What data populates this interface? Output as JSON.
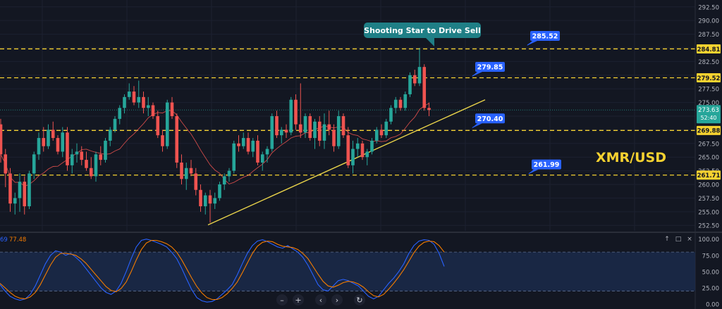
{
  "chart_data": [
    {
      "type": "candlestick",
      "symbol": "XMR/USD",
      "price_axis_ticks": [
        292.5,
        290.0,
        287.5,
        285.0,
        282.5,
        280.0,
        277.5,
        275.0,
        272.5,
        270.0,
        267.5,
        265.0,
        262.5,
        260.0,
        257.5,
        255.0,
        252.5
      ],
      "ylim": [
        251.5,
        293.5
      ],
      "level_lines": [
        284.81,
        279.52,
        269.88,
        261.71
      ],
      "level_tags": [
        {
          "label": "284.81",
          "value": 284.81
        },
        {
          "label": "279.52",
          "value": 279.52
        },
        {
          "label": "269.88",
          "value": 269.88
        },
        {
          "label": "261.71",
          "value": 261.71
        }
      ],
      "current_price": {
        "label": "273.63",
        "timer": "52:40",
        "value": 273.63
      },
      "callouts": [
        {
          "label": "285.52",
          "value": 285.52
        },
        {
          "label": "279.85",
          "value": 279.85
        },
        {
          "label": "270.40",
          "value": 270.4
        },
        {
          "label": "261.99",
          "value": 261.99
        }
      ],
      "annotation": "Shooting Star to Drive Sell",
      "trendline": {
        "start_index": 44,
        "start_value": 252.6,
        "end_index": 100,
        "end_value": 275.5
      },
      "candles": [
        [
          271.0,
          272.0,
          264.0,
          265.5
        ],
        [
          265.5,
          266.5,
          259.5,
          262.0
        ],
        [
          262.0,
          263.0,
          255.0,
          256.5
        ],
        [
          256.5,
          258.5,
          254.5,
          257.5
        ],
        [
          257.5,
          262.0,
          255.0,
          260.5
        ],
        [
          260.5,
          261.5,
          254.5,
          256.0
        ],
        [
          256.0,
          262.5,
          255.5,
          262.0
        ],
        [
          262.0,
          266.0,
          261.0,
          265.5
        ],
        [
          265.5,
          269.5,
          264.5,
          268.5
        ],
        [
          268.5,
          270.5,
          266.0,
          267.0
        ],
        [
          267.0,
          271.0,
          266.5,
          270.0
        ],
        [
          270.0,
          271.5,
          268.0,
          268.5
        ],
        [
          268.5,
          269.0,
          265.5,
          266.0
        ],
        [
          266.0,
          270.5,
          265.0,
          269.5
        ],
        [
          269.5,
          270.5,
          262.5,
          263.5
        ],
        [
          263.5,
          266.5,
          262.0,
          265.5
        ],
        [
          265.5,
          267.5,
          264.0,
          266.0
        ],
        [
          266.0,
          267.0,
          263.5,
          264.5
        ],
        [
          264.5,
          266.0,
          262.5,
          263.0
        ],
        [
          263.0,
          265.0,
          261.0,
          261.5
        ],
        [
          261.5,
          266.0,
          260.5,
          265.5
        ],
        [
          265.5,
          267.0,
          263.5,
          264.5
        ],
        [
          264.5,
          268.5,
          264.0,
          268.0
        ],
        [
          268.0,
          270.5,
          267.0,
          270.0
        ],
        [
          270.0,
          272.5,
          269.5,
          272.0
        ],
        [
          272.0,
          274.5,
          271.0,
          274.0
        ],
        [
          274.0,
          276.5,
          273.0,
          276.0
        ],
        [
          276.0,
          278.5,
          275.5,
          277.0
        ],
        [
          277.0,
          278.0,
          274.5,
          275.0
        ],
        [
          275.0,
          279.0,
          274.0,
          276.0
        ],
        [
          276.0,
          277.0,
          273.0,
          274.0
        ],
        [
          274.0,
          276.0,
          272.5,
          274.5
        ],
        [
          274.5,
          275.0,
          272.0,
          272.5
        ],
        [
          272.5,
          273.5,
          268.5,
          269.0
        ],
        [
          269.0,
          270.0,
          266.0,
          267.0
        ],
        [
          267.0,
          275.5,
          266.5,
          275.0
        ],
        [
          275.0,
          276.0,
          272.0,
          272.5
        ],
        [
          272.5,
          273.0,
          263.0,
          264.0
        ],
        [
          264.0,
          265.5,
          260.0,
          261.0
        ],
        [
          261.0,
          264.0,
          259.0,
          263.0
        ],
        [
          263.0,
          264.5,
          261.5,
          262.0
        ],
        [
          262.0,
          263.0,
          258.0,
          259.0
        ],
        [
          259.0,
          260.0,
          255.0,
          256.0
        ],
        [
          256.0,
          258.5,
          254.5,
          258.0
        ],
        [
          258.0,
          259.0,
          253.0,
          256.5
        ],
        [
          256.5,
          258.5,
          255.5,
          257.5
        ],
        [
          257.5,
          260.5,
          257.0,
          260.0
        ],
        [
          260.0,
          262.0,
          259.0,
          261.5
        ],
        [
          261.5,
          263.0,
          260.5,
          262.5
        ],
        [
          262.5,
          268.0,
          262.0,
          267.5
        ],
        [
          267.5,
          269.0,
          266.0,
          267.0
        ],
        [
          267.0,
          269.5,
          266.5,
          268.5
        ],
        [
          268.5,
          269.5,
          265.5,
          266.0
        ],
        [
          266.0,
          268.5,
          265.0,
          268.0
        ],
        [
          268.0,
          269.0,
          263.5,
          264.0
        ],
        [
          264.0,
          266.0,
          262.5,
          265.5
        ],
        [
          265.5,
          267.0,
          264.0,
          266.5
        ],
        [
          266.5,
          273.0,
          266.0,
          272.5
        ],
        [
          272.5,
          273.5,
          268.5,
          269.0
        ],
        [
          269.0,
          270.5,
          267.5,
          270.0
        ],
        [
          270.0,
          271.0,
          268.5,
          269.5
        ],
        [
          269.5,
          276.0,
          269.0,
          275.5
        ],
        [
          275.5,
          276.5,
          270.0,
          271.0
        ],
        [
          271.0,
          278.5,
          268.5,
          269.5
        ],
        [
          269.5,
          273.0,
          268.5,
          272.5
        ],
        [
          272.5,
          273.0,
          268.0,
          268.5
        ],
        [
          268.5,
          272.0,
          266.5,
          271.5
        ],
        [
          271.5,
          272.5,
          267.0,
          268.0
        ],
        [
          268.0,
          273.0,
          266.5,
          271.0
        ],
        [
          271.0,
          273.5,
          269.0,
          270.0
        ],
        [
          270.0,
          271.0,
          266.0,
          267.0
        ],
        [
          267.0,
          273.5,
          266.5,
          272.5
        ],
        [
          272.5,
          273.0,
          268.5,
          269.0
        ],
        [
          269.0,
          270.5,
          263.0,
          263.5
        ],
        [
          263.5,
          268.0,
          262.0,
          266.5
        ],
        [
          266.5,
          268.5,
          265.0,
          267.5
        ],
        [
          267.5,
          268.0,
          264.5,
          265.0
        ],
        [
          265.0,
          266.5,
          263.5,
          266.0
        ],
        [
          266.0,
          268.5,
          265.5,
          268.0
        ],
        [
          268.0,
          270.5,
          267.5,
          270.0
        ],
        [
          270.0,
          271.0,
          268.5,
          269.0
        ],
        [
          269.0,
          272.0,
          268.5,
          271.5
        ],
        [
          271.5,
          274.5,
          271.0,
          274.0
        ],
        [
          274.0,
          276.0,
          273.0,
          275.5
        ],
        [
          275.5,
          276.0,
          273.5,
          274.0
        ],
        [
          274.0,
          277.0,
          273.5,
          276.5
        ],
        [
          276.5,
          280.5,
          276.0,
          280.0
        ],
        [
          280.0,
          281.0,
          278.0,
          278.5
        ],
        [
          278.5,
          285.0,
          278.0,
          281.5
        ],
        [
          281.5,
          282.0,
          273.5,
          274.0
        ],
        [
          274.0,
          275.0,
          272.5,
          273.63
        ]
      ]
    },
    {
      "type": "line",
      "indicator_label": "77.48",
      "indicator_label_prefix": "69",
      "y_ticks": [
        100.0,
        75.0,
        50.0,
        25.0,
        0.0
      ],
      "ylim": [
        0,
        104
      ],
      "band": [
        20,
        80
      ],
      "series": [
        {
          "color": "#2962ff",
          "values": [
            30,
            20,
            12,
            8,
            6,
            8,
            15,
            28,
            45,
            62,
            75,
            82,
            80,
            75,
            78,
            72,
            65,
            55,
            45,
            35,
            25,
            18,
            15,
            20,
            32,
            50,
            70,
            88,
            98,
            100,
            98,
            95,
            92,
            88,
            80,
            70,
            55,
            38,
            22,
            10,
            5,
            3,
            4,
            8,
            15,
            22,
            30,
            45,
            62,
            78,
            90,
            97,
            99,
            96,
            92,
            88,
            86,
            90,
            85,
            80,
            72,
            60,
            45,
            30,
            22,
            20,
            28,
            36,
            38,
            36,
            32,
            28,
            20,
            12,
            8,
            12,
            22,
            32,
            40,
            50,
            62,
            78,
            90,
            97,
            99,
            98,
            92,
            78,
            58
          ]
        },
        {
          "color": "#f57c00",
          "values": [
            32,
            25,
            18,
            12,
            9,
            8,
            11,
            18,
            30,
            45,
            60,
            72,
            78,
            78,
            77,
            75,
            70,
            63,
            54,
            45,
            36,
            27,
            21,
            19,
            24,
            34,
            50,
            68,
            84,
            94,
            98,
            98,
            96,
            93,
            88,
            80,
            68,
            54,
            40,
            27,
            17,
            10,
            7,
            7,
            10,
            16,
            24,
            34,
            48,
            63,
            78,
            89,
            95,
            97,
            96,
            92,
            89,
            88,
            87,
            84,
            78,
            70,
            58,
            46,
            35,
            28,
            26,
            29,
            33,
            35,
            34,
            31,
            26,
            19,
            13,
            11,
            15,
            23,
            32,
            42,
            53,
            66,
            79,
            89,
            95,
            97,
            96,
            90,
            80
          ]
        }
      ]
    }
  ],
  "colors": {
    "up": "#26a69a",
    "down": "#ef5350",
    "level": "#f6d230",
    "trend": "#e8d24a",
    "callout": "#2962ff",
    "annotation": "#1f7f86",
    "symbol": "#f6d230"
  },
  "toolbar": {
    "items": [
      "–",
      "+",
      "‹",
      "›",
      "↻"
    ]
  },
  "pane_controls": [
    "↑",
    "□",
    "×"
  ]
}
